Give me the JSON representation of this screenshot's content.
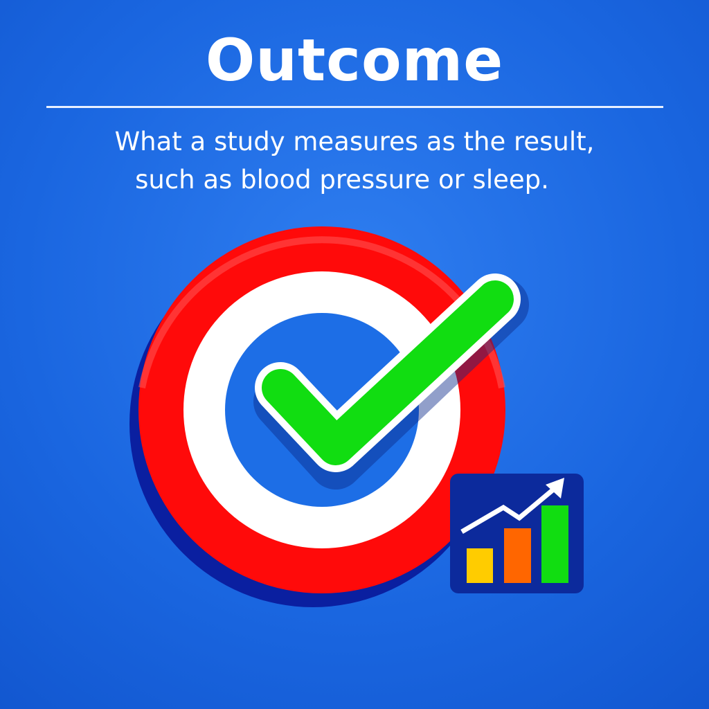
{
  "title": "Outcome",
  "subtitle": {
    "line1": "What a study measures as the result,",
    "line2": "such as blood pressure or sleep."
  },
  "illustration": {
    "target_icon": "target-icon",
    "check_icon": "checkmark-icon",
    "chart_icon": "bar-chart-trend-up-icon",
    "colors": {
      "background": "#1a66e0",
      "target_red": "#ff0a0a",
      "target_white": "#ffffff",
      "target_shadow": "#0a1fa0",
      "check_green": "#11dd11",
      "chart_bg": "#0c2a9c",
      "bar_yellow": "#ffcc00",
      "bar_orange": "#ff6600",
      "bar_green": "#11dd11"
    }
  }
}
